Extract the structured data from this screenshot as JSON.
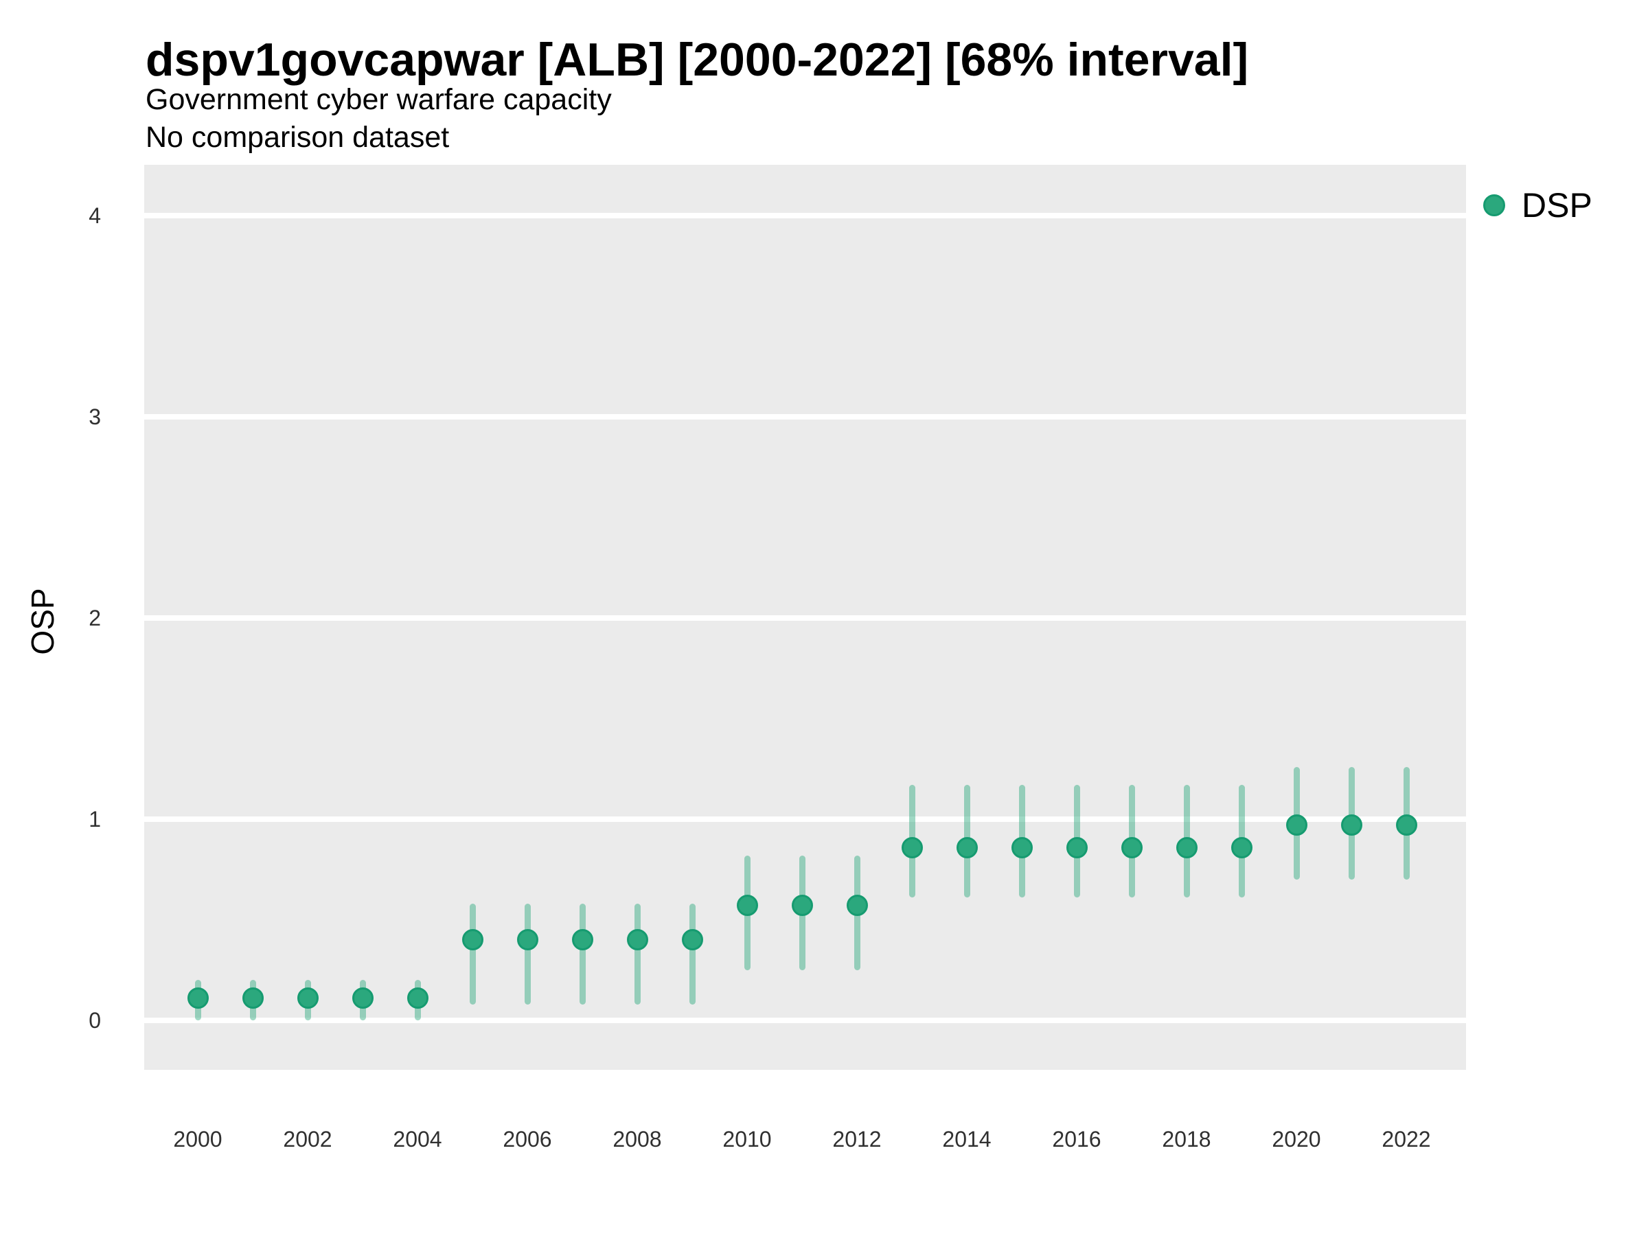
{
  "header": {
    "title": "dspv1govcapwar [ALB] [2000-2022] [68% interval]",
    "subtitle": "Government cyber warfare capacity",
    "note": "No comparison dataset"
  },
  "axes": {
    "y_title": "OSP"
  },
  "legend": {
    "items": [
      {
        "label": "DSP"
      }
    ]
  },
  "colors": {
    "point_fill": "#2BA87D",
    "point_stroke": "#169B70",
    "interval": "rgba(43,168,125,0.45)",
    "panel_background": "#EBEBEB",
    "gridline": "#FFFFFF",
    "tick_text": "#303030"
  },
  "chart_data": {
    "type": "scatter",
    "title": "dspv1govcapwar [ALB] [2000-2022] [68% interval]",
    "subtitle": "Government cyber warfare capacity",
    "note": "No comparison dataset",
    "interval_level": "68%",
    "xlabel": "",
    "ylabel": "OSP",
    "xlim": [
      1999,
      2023.1
    ],
    "ylim": [
      -0.25,
      4.25
    ],
    "x_ticks": [
      2000,
      2002,
      2004,
      2006,
      2008,
      2010,
      2012,
      2014,
      2016,
      2018,
      2020,
      2022
    ],
    "y_ticks": [
      0,
      1,
      2,
      3,
      4
    ],
    "grid": "major-horizontal-only",
    "legend_position": "right",
    "series": [
      {
        "name": "DSP",
        "points": [
          {
            "year": 2000,
            "value": 0.11,
            "lo": 0.0,
            "hi": 0.2
          },
          {
            "year": 2001,
            "value": 0.11,
            "lo": 0.0,
            "hi": 0.2
          },
          {
            "year": 2002,
            "value": 0.11,
            "lo": 0.0,
            "hi": 0.2
          },
          {
            "year": 2003,
            "value": 0.11,
            "lo": 0.0,
            "hi": 0.2
          },
          {
            "year": 2004,
            "value": 0.11,
            "lo": 0.0,
            "hi": 0.2
          },
          {
            "year": 2005,
            "value": 0.4,
            "lo": 0.08,
            "hi": 0.58
          },
          {
            "year": 2006,
            "value": 0.4,
            "lo": 0.08,
            "hi": 0.58
          },
          {
            "year": 2007,
            "value": 0.4,
            "lo": 0.08,
            "hi": 0.58
          },
          {
            "year": 2008,
            "value": 0.4,
            "lo": 0.08,
            "hi": 0.58
          },
          {
            "year": 2009,
            "value": 0.4,
            "lo": 0.08,
            "hi": 0.58
          },
          {
            "year": 2010,
            "value": 0.57,
            "lo": 0.25,
            "hi": 0.82
          },
          {
            "year": 2011,
            "value": 0.57,
            "lo": 0.25,
            "hi": 0.82
          },
          {
            "year": 2012,
            "value": 0.57,
            "lo": 0.25,
            "hi": 0.82
          },
          {
            "year": 2013,
            "value": 0.86,
            "lo": 0.61,
            "hi": 1.17
          },
          {
            "year": 2014,
            "value": 0.86,
            "lo": 0.61,
            "hi": 1.17
          },
          {
            "year": 2015,
            "value": 0.86,
            "lo": 0.61,
            "hi": 1.17
          },
          {
            "year": 2016,
            "value": 0.86,
            "lo": 0.61,
            "hi": 1.17
          },
          {
            "year": 2017,
            "value": 0.86,
            "lo": 0.61,
            "hi": 1.17
          },
          {
            "year": 2018,
            "value": 0.86,
            "lo": 0.61,
            "hi": 1.17
          },
          {
            "year": 2019,
            "value": 0.86,
            "lo": 0.61,
            "hi": 1.17
          },
          {
            "year": 2020,
            "value": 0.97,
            "lo": 0.7,
            "hi": 1.26
          },
          {
            "year": 2021,
            "value": 0.97,
            "lo": 0.7,
            "hi": 1.26
          },
          {
            "year": 2022,
            "value": 0.97,
            "lo": 0.7,
            "hi": 1.26
          }
        ]
      }
    ]
  }
}
